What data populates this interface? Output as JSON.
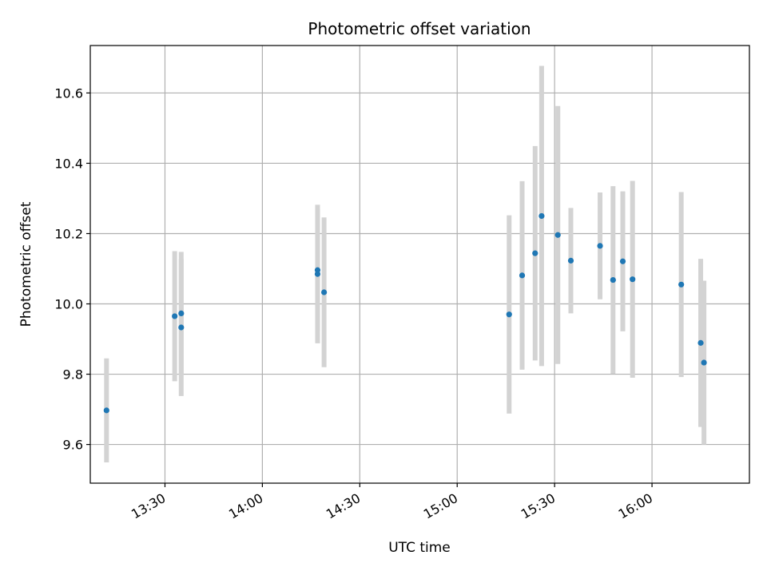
{
  "chart_data": {
    "type": "scatter",
    "title": "Photometric offset variation",
    "xlabel": "UTC time",
    "ylabel": "Photometric offset",
    "x_ticks": [
      "13:30",
      "14:00",
      "14:30",
      "15:00",
      "15:30",
      "16:00"
    ],
    "y_ticks": [
      "9.6",
      "9.8",
      "10.0",
      "10.2",
      "10.4",
      "10.6"
    ],
    "xlim": [
      "13:07",
      "16:30"
    ],
    "ylim": [
      9.49,
      10.735
    ],
    "grid": true,
    "series": [
      {
        "marker_color": "#1f77b4",
        "errorbar_color": "#d3d3d3",
        "points": [
          {
            "x": "13:12",
            "y": 9.697,
            "err": 0.148
          },
          {
            "x": "13:33",
            "y": 9.965,
            "err": 0.185
          },
          {
            "x": "13:35",
            "y": 9.973,
            "err": 0.175
          },
          {
            "x": "13:35",
            "y": 9.933,
            "err": 0.195
          },
          {
            "x": "14:17",
            "y": 10.085,
            "err": 0.197
          },
          {
            "x": "14:17",
            "y": 10.096,
            "err": 0.173
          },
          {
            "x": "14:19",
            "y": 10.033,
            "err": 0.213
          },
          {
            "x": "15:16",
            "y": 9.97,
            "err": 0.282
          },
          {
            "x": "15:20",
            "y": 10.081,
            "err": 0.268
          },
          {
            "x": "15:24",
            "y": 10.144,
            "err": 0.305
          },
          {
            "x": "15:26",
            "y": 10.25,
            "err": 0.427
          },
          {
            "x": "15:31",
            "y": 10.196,
            "err": 0.367
          },
          {
            "x": "15:35",
            "y": 10.123,
            "err": 0.15
          },
          {
            "x": "15:44",
            "y": 10.165,
            "err": 0.152
          },
          {
            "x": "15:48",
            "y": 10.068,
            "err": 0.267
          },
          {
            "x": "15:51",
            "y": 10.121,
            "err": 0.199
          },
          {
            "x": "15:54",
            "y": 10.07,
            "err": 0.28
          },
          {
            "x": "16:09",
            "y": 10.055,
            "err": 0.263
          },
          {
            "x": "16:15",
            "y": 9.889,
            "err": 0.239
          },
          {
            "x": "16:16",
            "y": 9.833,
            "err": 0.233
          }
        ]
      }
    ]
  }
}
